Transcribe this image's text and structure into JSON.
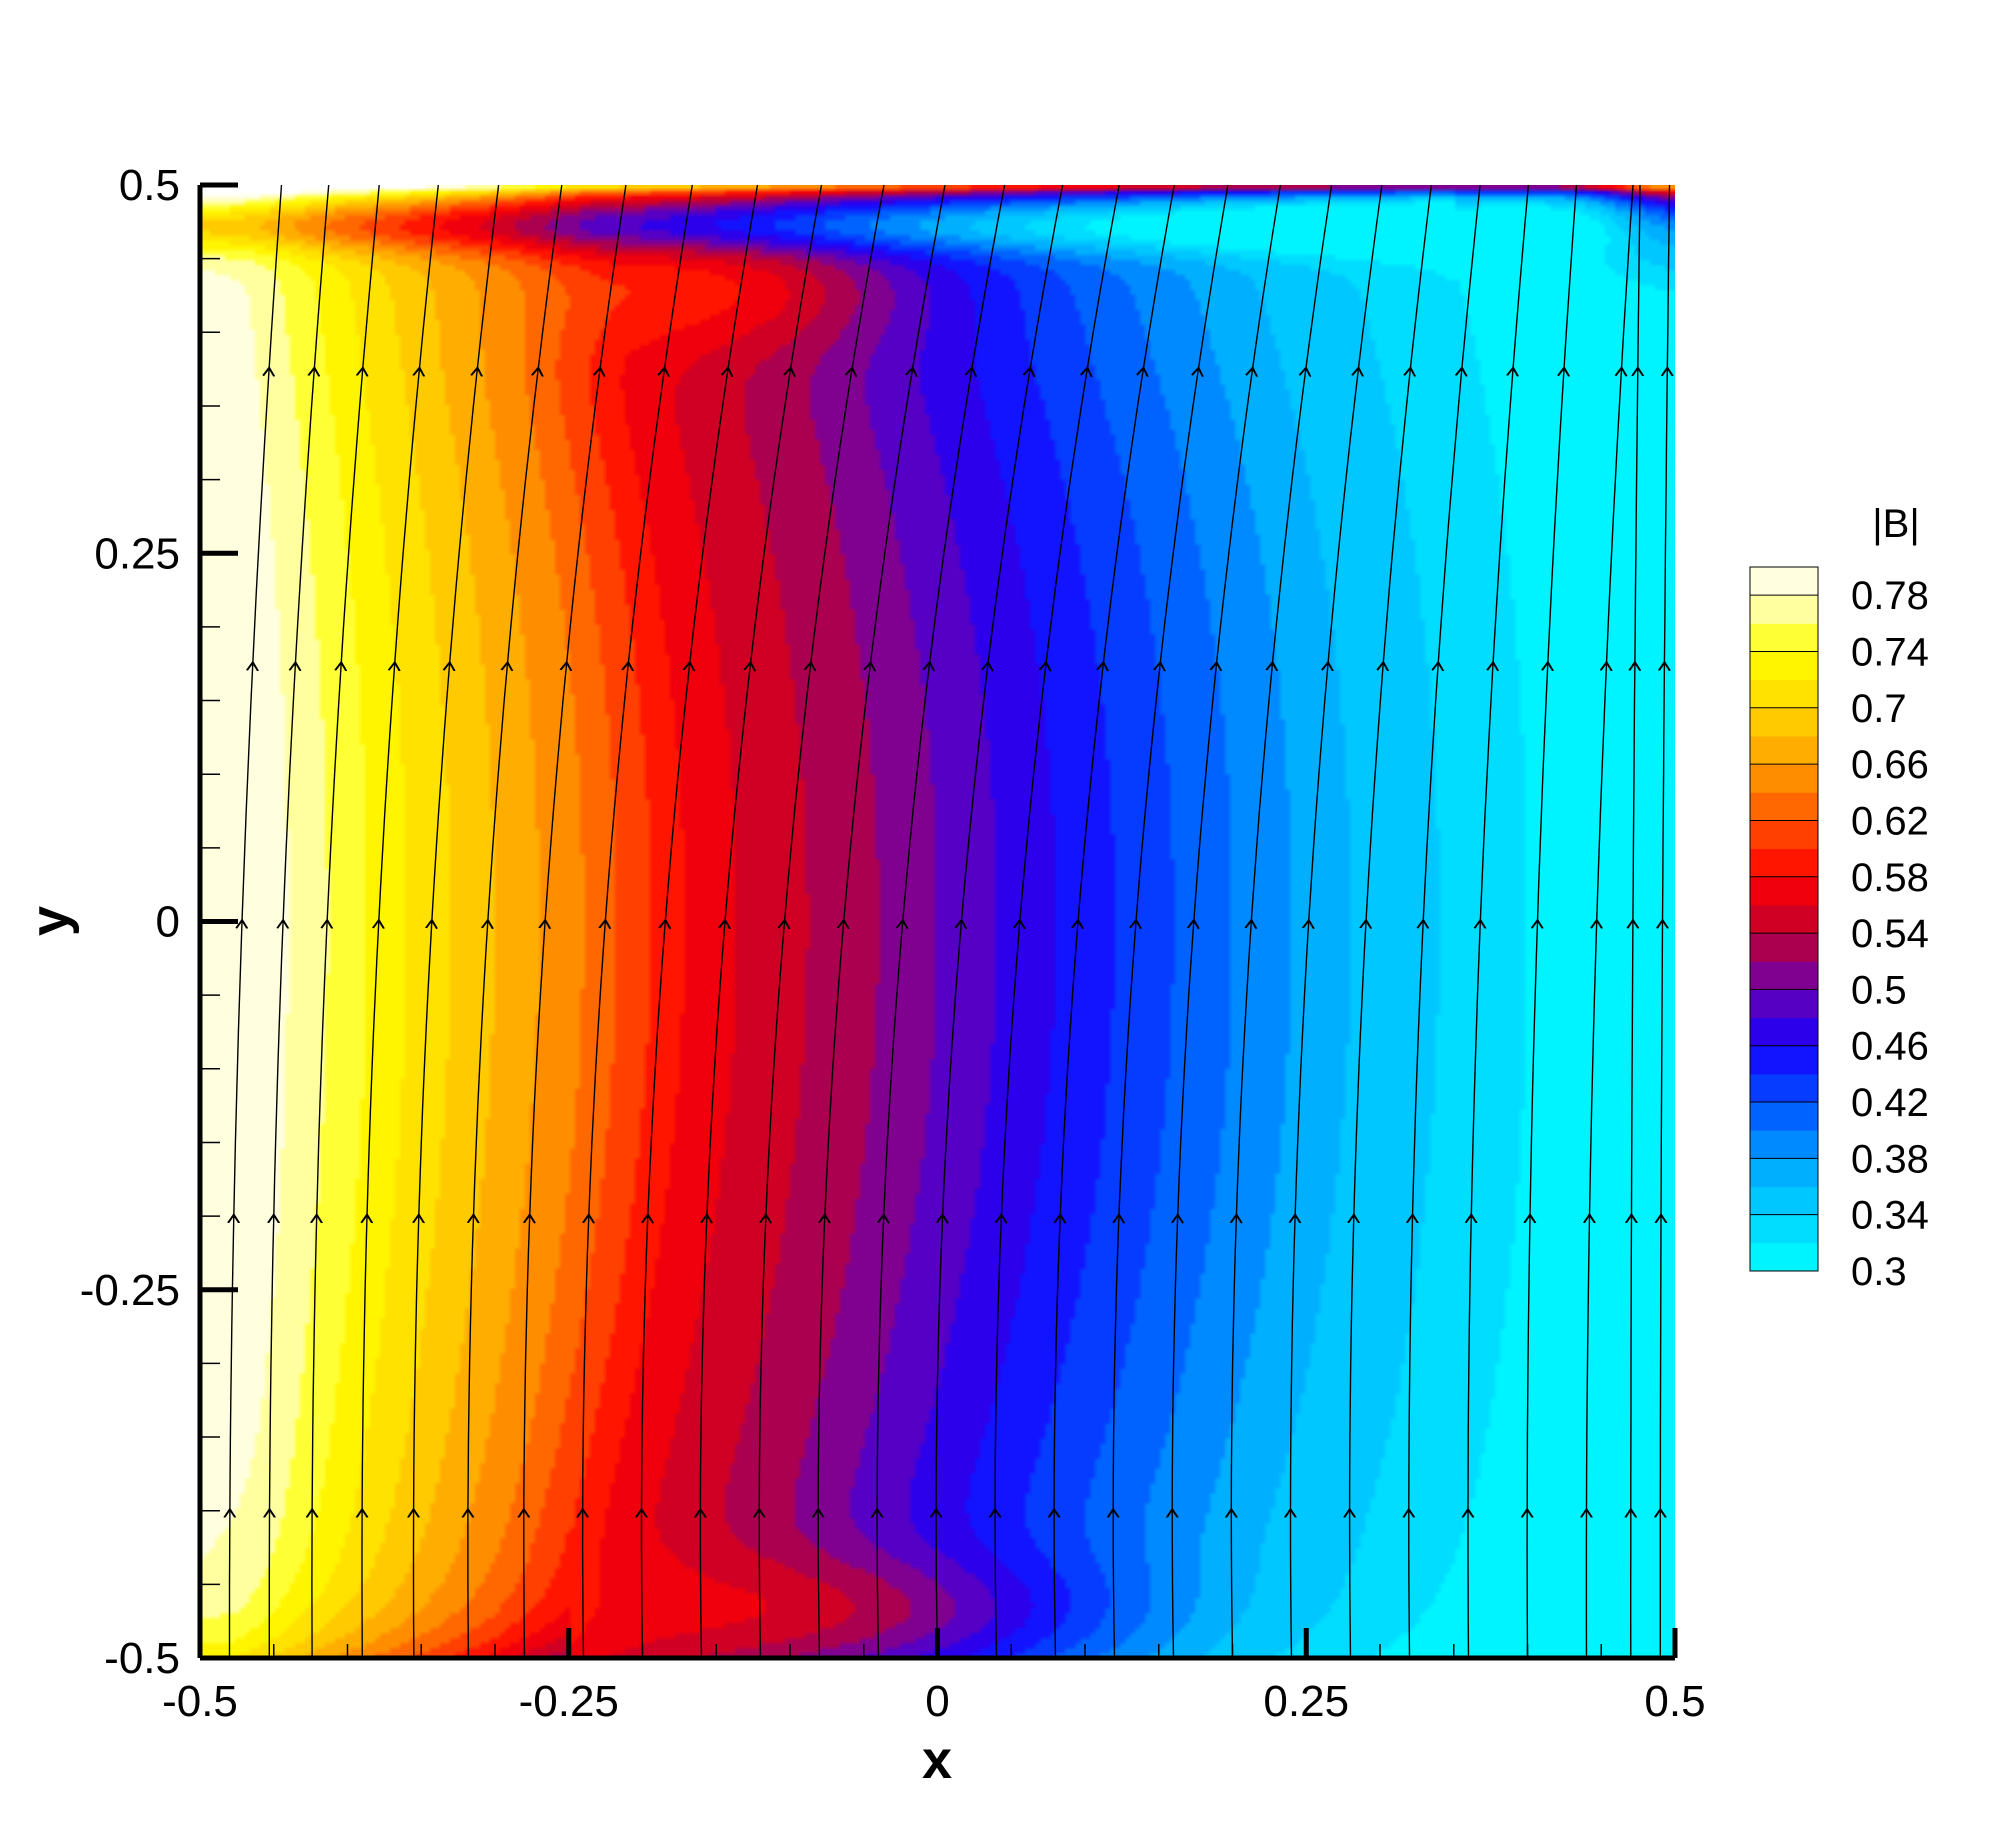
{
  "chart_data": {
    "type": "heatmap",
    "title": "",
    "xlabel": "x",
    "ylabel": "y",
    "xlim": [
      -0.5,
      0.5
    ],
    "ylim": [
      -0.5,
      0.5
    ],
    "x_ticks": [
      "-0.5",
      "-0.25",
      "0",
      "0.25",
      "0.5"
    ],
    "x_tick_values": [
      -0.5,
      -0.25,
      0,
      0.25,
      0.5
    ],
    "y_ticks": [
      "-0.5",
      "-0.25",
      "0",
      "0.25",
      "0.5"
    ],
    "y_tick_values": [
      -0.5,
      -0.25,
      0,
      0.25,
      0.5
    ],
    "grid": false,
    "colorbar": {
      "title": "|B|",
      "placement": "right",
      "min": 0.3,
      "max": 0.8,
      "labels": [
        "0.78",
        "0.74",
        "0.7",
        "0.66",
        "0.62",
        "0.58",
        "0.54",
        "0.5",
        "0.46",
        "0.42",
        "0.38",
        "0.34",
        "0.3"
      ],
      "label_values": [
        0.78,
        0.74,
        0.7,
        0.66,
        0.62,
        0.58,
        0.54,
        0.5,
        0.46,
        0.42,
        0.38,
        0.34,
        0.3
      ],
      "colors": [
        {
          "v": 0.3,
          "c": "#00ffff"
        },
        {
          "v": 0.37,
          "c": "#00b0ff"
        },
        {
          "v": 0.42,
          "c": "#0050ff"
        },
        {
          "v": 0.46,
          "c": "#1800ff"
        },
        {
          "v": 0.5,
          "c": "#6a00b0"
        },
        {
          "v": 0.54,
          "c": "#c00030"
        },
        {
          "v": 0.58,
          "c": "#ff0000"
        },
        {
          "v": 0.62,
          "c": "#ff5500"
        },
        {
          "v": 0.66,
          "c": "#ffa000"
        },
        {
          "v": 0.7,
          "c": "#ffd800"
        },
        {
          "v": 0.74,
          "c": "#ffff00"
        },
        {
          "v": 0.77,
          "c": "#ffffa0"
        },
        {
          "v": 0.8,
          "c": "#ffffff"
        }
      ]
    },
    "field_profile": {
      "description_x": [
        -0.5,
        -0.44,
        -0.36,
        -0.24,
        -0.16,
        -0.04,
        0.04,
        0.14,
        0.28,
        0.4,
        0.5
      ],
      "B_mid": [
        0.79,
        0.78,
        0.72,
        0.64,
        0.57,
        0.52,
        0.48,
        0.43,
        0.36,
        0.32,
        0.3
      ]
    },
    "streamlines": {
      "direction": "up",
      "count": 27,
      "x_start": [
        -0.48,
        -0.453,
        -0.424,
        -0.39,
        -0.355,
        -0.318,
        -0.28,
        -0.24,
        -0.2,
        -0.16,
        -0.12,
        -0.08,
        -0.04,
        0.0,
        0.04,
        0.08,
        0.12,
        0.16,
        0.2,
        0.24,
        0.28,
        0.32,
        0.36,
        0.4,
        0.44,
        0.47,
        0.49
      ]
    }
  }
}
